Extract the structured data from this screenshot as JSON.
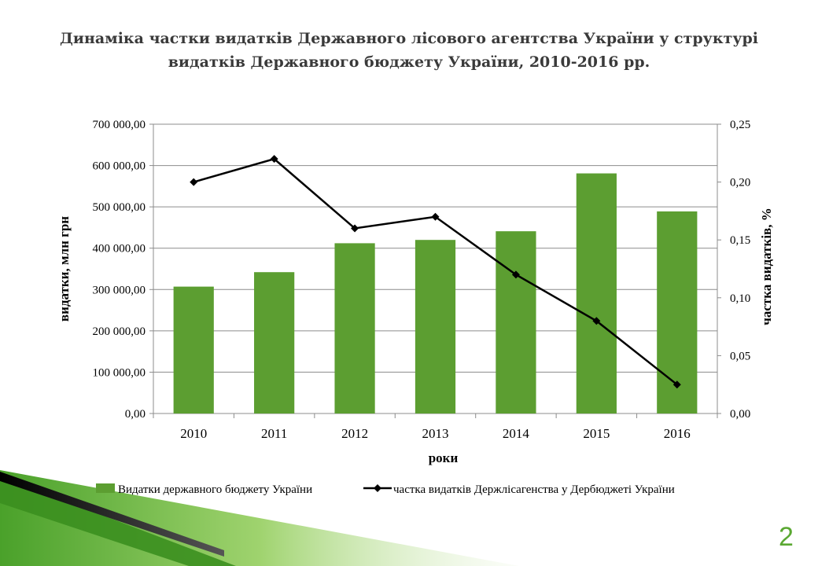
{
  "slide": {
    "title_line1": "Динаміка частки видатків Державного лісового агентства України у структурі",
    "title_line2": "видатків Державного бюджету України, 2010-2016 рр.",
    "page_number": "2"
  },
  "colors": {
    "bar": "#5c9e31",
    "line": "#000000",
    "slide_number": "#5aa832"
  },
  "chart_data": {
    "type": "bar",
    "categories": [
      "2010",
      "2011",
      "2012",
      "2013",
      "2014",
      "2015",
      "2016"
    ],
    "series": [
      {
        "name": "Видатки державного бюджету України",
        "type": "bar",
        "axis": "left",
        "values": [
          307000,
          342000,
          412000,
          420000,
          441000,
          581000,
          489000
        ]
      },
      {
        "name": "частка видатків Держлісагенства у Дербюджеті України",
        "type": "line",
        "axis": "right",
        "values": [
          0.2,
          0.22,
          0.16,
          0.17,
          0.12,
          0.08,
          0.025
        ]
      }
    ],
    "xlabel": "роки",
    "ylabel": "видатки, млн грн",
    "y2label": "частка видатків, %",
    "ylim": [
      0,
      700000
    ],
    "y2lim": [
      0,
      0.25
    ],
    "yticks": [
      "0,00",
      "100 000,00",
      "200 000,00",
      "300 000,00",
      "400 000,00",
      "500 000,00",
      "600 000,00",
      "700 000,00"
    ],
    "y2ticks": [
      "0,00",
      "0,05",
      "0,10",
      "0,15",
      "0,20",
      "0,25"
    ],
    "grid": true,
    "legend": "bottom"
  }
}
